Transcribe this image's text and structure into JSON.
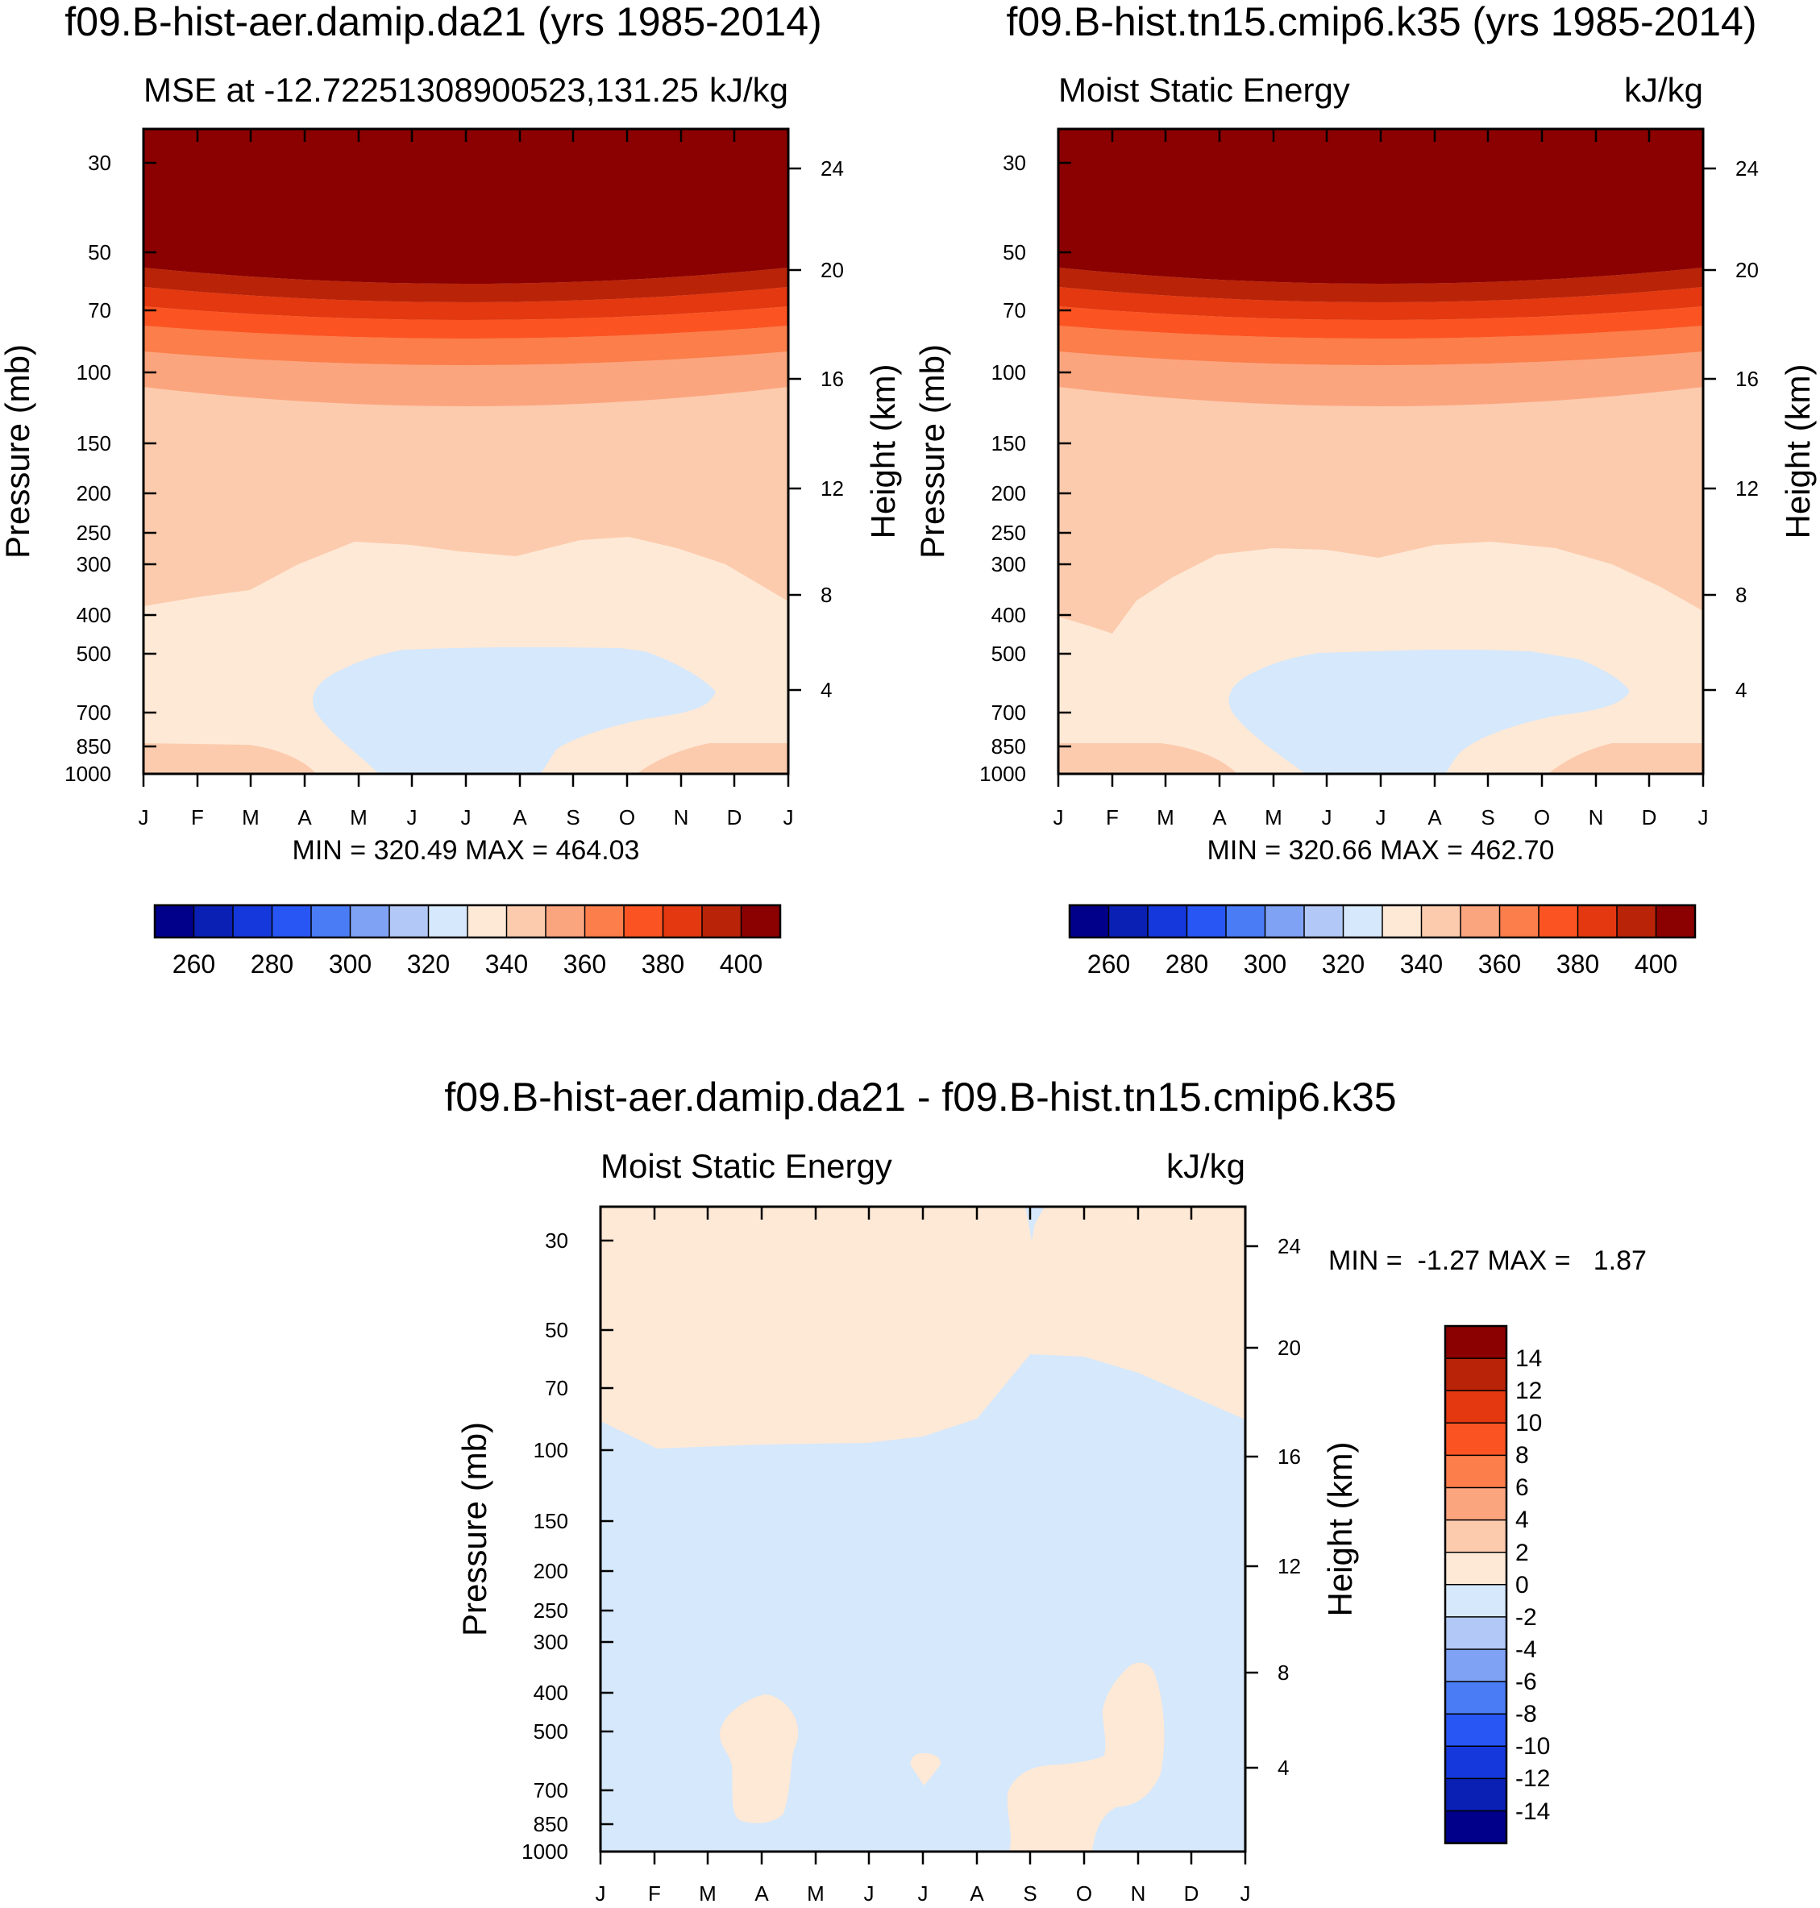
{
  "chart_data": [
    {
      "type": "heatmap",
      "title": "f09.B-hist-aer.damip.da21 (yrs 1985-2014)",
      "subtitle_left": "MSE at -12.72251308900523,131.25",
      "subtitle_right": "kJ/kg",
      "ylabel": "Pressure (mb)",
      "y2label": "Height (km)",
      "x_ticks": [
        "J",
        "F",
        "M",
        "A",
        "M",
        "J",
        "J",
        "A",
        "S",
        "O",
        "N",
        "D",
        "J"
      ],
      "y_ticks": [
        30,
        50,
        70,
        100,
        150,
        200,
        250,
        300,
        400,
        500,
        700,
        850,
        1000
      ],
      "y2_ticks": [
        24,
        20,
        16,
        12,
        8,
        4
      ],
      "stats": "MIN = 320.49 MAX = 464.03",
      "colorbar_labels": [
        260,
        280,
        300,
        320,
        340,
        360,
        380,
        400
      ],
      "contour_levels": [
        250,
        260,
        270,
        280,
        290,
        300,
        310,
        320,
        330,
        340,
        350,
        360,
        370,
        380,
        390,
        400,
        410
      ]
    },
    {
      "type": "heatmap",
      "title": "f09.B-hist.tn15.cmip6.k35 (yrs 1985-2014)",
      "subtitle_left": "Moist Static Energy",
      "subtitle_right": "kJ/kg",
      "ylabel": "Pressure (mb)",
      "y2label": "Height (km)",
      "x_ticks": [
        "J",
        "F",
        "M",
        "A",
        "M",
        "J",
        "J",
        "A",
        "S",
        "O",
        "N",
        "D",
        "J"
      ],
      "y_ticks": [
        30,
        50,
        70,
        100,
        150,
        200,
        250,
        300,
        400,
        500,
        700,
        850,
        1000
      ],
      "y2_ticks": [
        24,
        20,
        16,
        12,
        8,
        4
      ],
      "stats": "MIN = 320.66 MAX = 462.70",
      "colorbar_labels": [
        260,
        280,
        300,
        320,
        340,
        360,
        380,
        400
      ],
      "contour_levels": [
        250,
        260,
        270,
        280,
        290,
        300,
        310,
        320,
        330,
        340,
        350,
        360,
        370,
        380,
        390,
        400,
        410
      ]
    },
    {
      "type": "heatmap",
      "title": "f09.B-hist-aer.damip.da21 - f09.B-hist.tn15.cmip6.k35",
      "subtitle_left": "Moist Static Energy",
      "subtitle_right": "kJ/kg",
      "ylabel": "Pressure (mb)",
      "y2label": "Height (km)",
      "x_ticks": [
        "J",
        "F",
        "M",
        "A",
        "M",
        "J",
        "J",
        "A",
        "S",
        "O",
        "N",
        "D",
        "J"
      ],
      "y_ticks": [
        30,
        50,
        70,
        100,
        150,
        200,
        250,
        300,
        400,
        500,
        700,
        850,
        1000
      ],
      "y2_ticks": [
        24,
        20,
        16,
        12,
        8,
        4
      ],
      "stats": "MIN =  -1.27 MAX =   1.87",
      "colorbar_labels": [
        14,
        12,
        10,
        8,
        6,
        4,
        2,
        0,
        -2,
        -4,
        -6,
        -8,
        -10,
        -12,
        -14
      ],
      "contour_levels": [
        -16,
        -14,
        -12,
        -10,
        -8,
        -6,
        -4,
        -2,
        0,
        2,
        4,
        6,
        8,
        10,
        12,
        14,
        16
      ]
    }
  ],
  "colors": {
    "scale": [
      "#00008b",
      "#0a1fb4",
      "#1438db",
      "#2856f5",
      "#4a7cf5",
      "#7fa2f4",
      "#b2c8f6",
      "#d6e8fb",
      "#fee9d6",
      "#fccbad",
      "#fba57f",
      "#fb7e4b",
      "#fb5422",
      "#e33810",
      "#b92308",
      "#8b0000"
    ]
  }
}
